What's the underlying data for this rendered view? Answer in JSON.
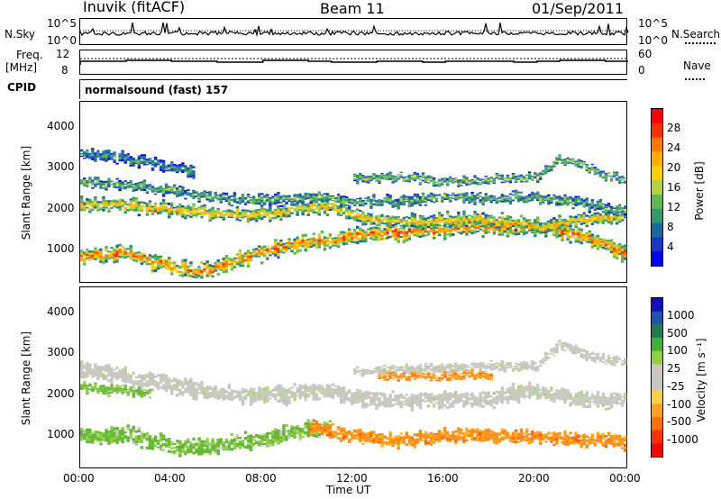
{
  "header": {
    "station": "Inuvik (fitACF)",
    "beam": "Beam 11",
    "date": "01/Sep/2011"
  },
  "top_panels": {
    "sky_label": "N.Sky",
    "sky_ticks": [
      "10^5",
      "10^0"
    ],
    "search_label": "N.Search",
    "search_ticks": [
      "10^5",
      "10^0"
    ],
    "freq_label_1": "Freq.",
    "freq_label_2": "[MHz]",
    "freq_ticks": [
      "12",
      "8"
    ],
    "nave_label": "Nave",
    "nave_ticks": [
      "60",
      "0"
    ],
    "cpid_label": "CPID",
    "cpid_value": "normalsound (fast) 157"
  },
  "chart_data": [
    {
      "type": "heatmap",
      "name": "power",
      "ylabel": "Slant Range [km]",
      "xlabel": "",
      "x_range": [
        "00:00",
        "24:00"
      ],
      "ylim": [
        180,
        4600
      ],
      "yticks": [
        1000,
        2000,
        3000,
        4000
      ],
      "colorbar_label": "Power [dB]",
      "colorbar_ticks": [
        28,
        24,
        20,
        16,
        12,
        8,
        4
      ],
      "colorbar_colors": [
        "#ff0000",
        "#ff3000",
        "#ff7a00",
        "#ffae00",
        "#ffd000",
        "#b8d040",
        "#60b850",
        "#2e9a70",
        "#1a6aa0",
        "#1438c8",
        "#0000ff"
      ],
      "bands": [
        {
          "start_h": 0,
          "end_h": 24,
          "center_km": [
            800,
            850,
            900,
            700,
            550,
            420,
            500,
            750,
            900,
            1050,
            1150,
            1200,
            1300,
            1350,
            1400,
            1450,
            1450,
            1500,
            1550,
            1500,
            1550,
            1450,
            1300,
            1100,
            850
          ],
          "width_km": 350,
          "level": 0.85
        },
        {
          "start_h": 0,
          "end_h": 24,
          "center_km": [
            2050,
            2100,
            2050,
            2000,
            1950,
            1900,
            1850,
            1800,
            1850,
            1900,
            2000,
            2050,
            1800,
            1700,
            1650,
            1650,
            1700,
            1700,
            1700,
            1650,
            1500,
            1600,
            1700,
            1750,
            1800
          ],
          "width_km": 300,
          "level": 0.7
        },
        {
          "start_h": 0,
          "end_h": 24,
          "center_km": [
            2650,
            2600,
            2550,
            2500,
            2400,
            2300,
            2250,
            2200,
            2200,
            2200,
            2250,
            2200,
            2150,
            2150,
            2150,
            2200,
            2250,
            2250,
            2200,
            2250,
            2250,
            2200,
            2100,
            2000,
            1900
          ],
          "width_km": 220,
          "level": 0.45
        },
        {
          "start_h": 12,
          "end_h": 24,
          "center_km": [
            2700,
            2750,
            2750,
            2700,
            2650,
            2650,
            2700,
            2750,
            2750,
            3200,
            3050,
            2800,
            2700
          ],
          "width_km": 180,
          "level": 0.5
        },
        {
          "start_h": 0,
          "end_h": 5,
          "center_km": [
            3300,
            3300,
            3200,
            3100,
            3000,
            2900
          ],
          "width_km": 250,
          "level": 0.35
        }
      ]
    },
    {
      "type": "heatmap",
      "name": "velocity",
      "ylabel": "Slant Range [km]",
      "xlabel": "Time UT",
      "x_range": [
        "00:00",
        "24:00"
      ],
      "xticks": [
        "00:00",
        "04:00",
        "08:00",
        "12:00",
        "16:00",
        "20:00",
        "00:00"
      ],
      "ylim": [
        180,
        4600
      ],
      "yticks": [
        1000,
        2000,
        3000,
        4000
      ],
      "colorbar_label": "Velocity [m s⁻¹]",
      "colorbar_ticks": [
        "1000",
        "500",
        "100",
        "25",
        "-25",
        "-100",
        "-500",
        "-1000"
      ],
      "colorbar_colors": [
        "#1010c0",
        "#2050b0",
        "#207a50",
        "#40b030",
        "#90d040",
        "#c8c8c0",
        "#c8c8c0",
        "#ffd040",
        "#ffa020",
        "#ff7000",
        "#ff3000",
        "#ff0000"
      ],
      "bands": [
        {
          "start_h": 0,
          "end_h": 24,
          "center_km": [
            2550,
            2500,
            2400,
            2300,
            2200,
            2100,
            2000,
            1950,
            1950,
            1950,
            2050,
            2050,
            1900,
            1850,
            1800,
            1850,
            1850,
            1850,
            1850,
            2000,
            2050,
            1950,
            1850,
            1800,
            1850
          ],
          "width_km": 350,
          "color": "#c8c8c0"
        },
        {
          "start_h": 12,
          "end_h": 24,
          "center_km": [
            2550,
            2550,
            2600,
            2600,
            2600,
            2650,
            2650,
            2650,
            2650,
            3200,
            3000,
            2800,
            2750
          ],
          "width_km": 200,
          "color": "#c8c8c0"
        },
        {
          "start_h": 0,
          "end_h": 11,
          "center_km": [
            950,
            950,
            1000,
            850,
            700,
            650,
            700,
            800,
            850,
            1000,
            1100,
            1150
          ],
          "width_km": 350,
          "color": "#60b830"
        },
        {
          "start_h": 10,
          "end_h": 24,
          "center_km": [
            1150,
            1050,
            950,
            900,
            850,
            900,
            950,
            950,
            950,
            950,
            900,
            900,
            850,
            850,
            800
          ],
          "width_km": 300,
          "color": "#ff8c10"
        },
        {
          "start_h": 13,
          "end_h": 18,
          "center_km": [
            2450,
            2400,
            2400,
            2400,
            2450,
            2450
          ],
          "width_km": 160,
          "color": "#ff8c10"
        },
        {
          "start_h": 0,
          "end_h": 3,
          "center_km": [
            2150,
            2100,
            2050,
            2000
          ],
          "width_km": 200,
          "color": "#60b830"
        }
      ]
    }
  ]
}
